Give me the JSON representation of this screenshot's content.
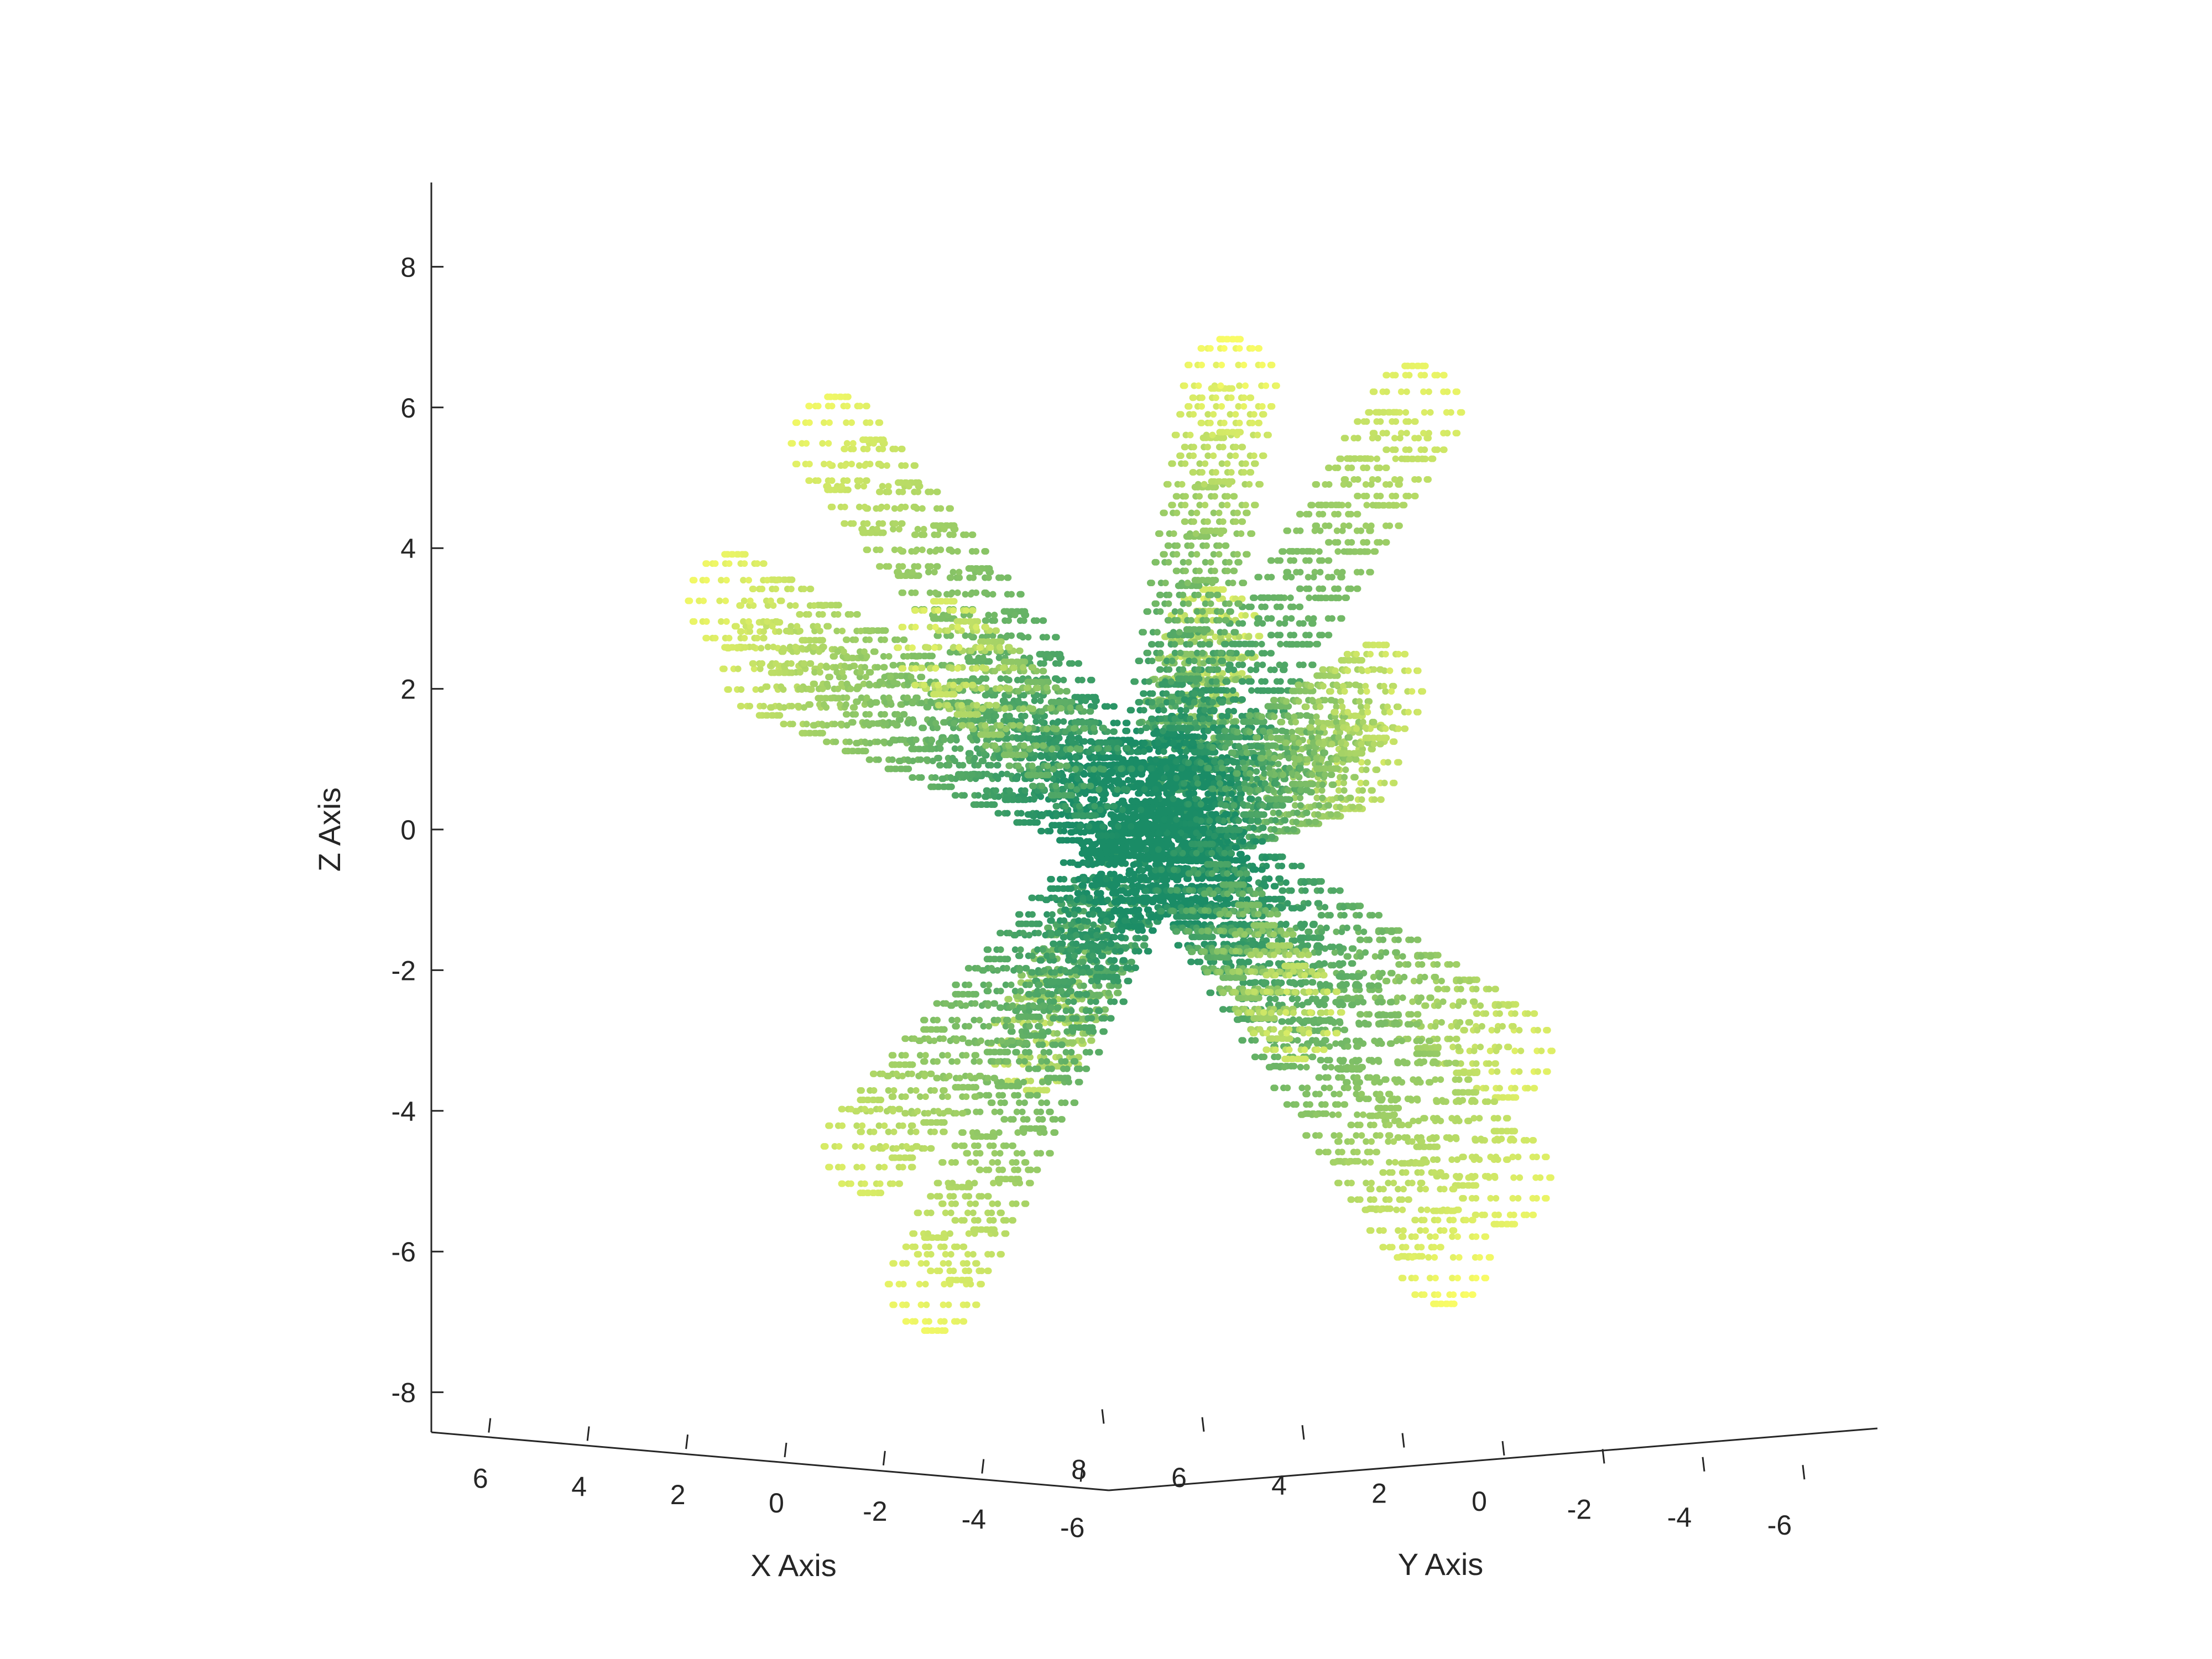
{
  "chart_data": {
    "type": "scatter3d",
    "title": "",
    "xlabel": "X Axis",
    "ylabel": "Y Axis",
    "zlabel": "Z Axis",
    "xlim": [
      -7,
      7.5
    ],
    "ylim": [
      -7,
      8
    ],
    "zlim": [
      -9,
      9
    ],
    "x_ticks": [
      6,
      4,
      2,
      0,
      -2,
      -4,
      -6
    ],
    "y_ticks": [
      8,
      6,
      4,
      2,
      0,
      -2,
      -4,
      -6
    ],
    "z_ticks": [
      8,
      6,
      4,
      2,
      0,
      -2,
      -4,
      -6,
      -8
    ],
    "x_tick_labels": [
      "6",
      "4",
      "2",
      "0",
      "-2",
      "-4",
      "-6"
    ],
    "y_tick_labels": [
      "8",
      "6",
      "4",
      "2",
      "0",
      "-2",
      "-4",
      "-6"
    ],
    "z_tick_labels": [
      "8",
      "6",
      "4",
      "2",
      "0",
      "-2",
      "-4",
      "-6",
      "-8"
    ],
    "grid": false,
    "colormap": "summer",
    "color_low": "#1a8c66",
    "color_high": "#ffff66",
    "marker": "dot",
    "description_of_data": "points on small spheres arranged along tubular arms radiating from the origin",
    "arms": [
      {
        "dir": [
          0.55,
          0.35,
          0.76
        ],
        "length": 8.0
      },
      {
        "dir": [
          0.3,
          -0.45,
          0.84
        ],
        "length": 8.3
      },
      {
        "dir": [
          -0.45,
          -0.3,
          0.84
        ],
        "length": 7.8
      },
      {
        "dir": [
          0.8,
          0.4,
          0.45
        ],
        "length": 8.0
      },
      {
        "dir": [
          0.9,
          -0.2,
          0.38
        ],
        "length": 7.5
      },
      {
        "dir": [
          0.25,
          0.9,
          0.35
        ],
        "length": 7.2
      },
      {
        "dir": [
          -0.75,
          0.5,
          0.4
        ],
        "length": 7.5
      },
      {
        "dir": [
          -0.85,
          -0.2,
          -0.45
        ],
        "length": 7.6
      },
      {
        "dir": [
          -0.55,
          -0.45,
          -0.7
        ],
        "length": 7.8
      },
      {
        "dir": [
          0.2,
          0.4,
          -0.89
        ],
        "length": 8.0
      },
      {
        "dir": [
          -0.2,
          -0.55,
          -0.81
        ],
        "length": 8.3
      },
      {
        "dir": [
          0.45,
          -0.8,
          -0.4
        ],
        "length": 7.2
      },
      {
        "dir": [
          -0.45,
          0.75,
          -0.48
        ],
        "length": 7.0
      },
      {
        "dir": [
          0.7,
          0.2,
          -0.68
        ],
        "length": 7.3
      },
      {
        "dir": [
          -0.95,
          0.25,
          0.15
        ],
        "length": 7.0
      },
      {
        "dir": [
          0.3,
          -0.9,
          0.3
        ],
        "length": 7.2
      }
    ],
    "sphere_radius": 0.75,
    "spheres_per_arm": 9
  }
}
